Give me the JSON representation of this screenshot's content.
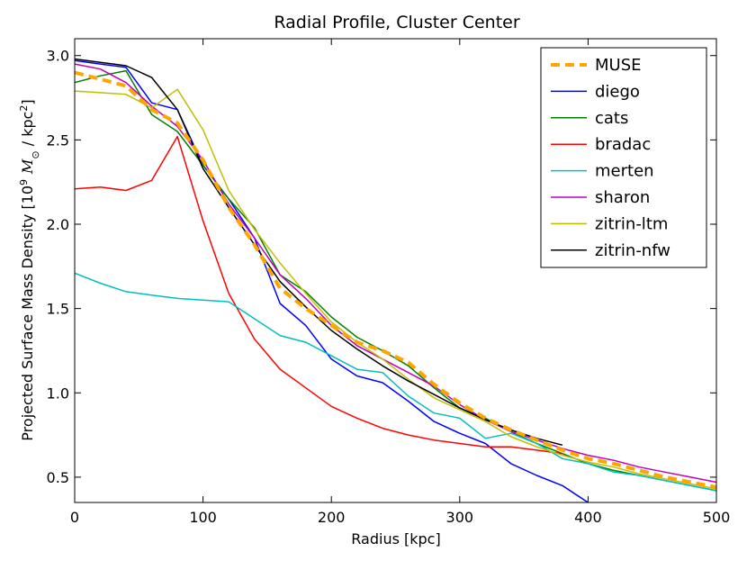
{
  "chart_data": {
    "type": "line",
    "title": "Radial Profile, Cluster Center",
    "xlabel": "Radius [kpc]",
    "ylabel": "Projected Surface Mass Density [10",
    "ylabel_sup": "9",
    "ylabel_unit": "M",
    "ylabel_sub": "⊙",
    "ylabel_tail": " / kpc",
    "ylabel_sup2": "2",
    "ylabel_end": "]",
    "xlim": [
      0,
      500
    ],
    "ylim": [
      0.35,
      3.1
    ],
    "xticks": [
      0,
      100,
      200,
      300,
      400,
      500
    ],
    "xtick_labels": [
      "0",
      "100",
      "200",
      "300",
      "400",
      "500"
    ],
    "yticks": [
      0.5,
      1.0,
      1.5,
      2.0,
      2.5,
      3.0
    ],
    "ytick_labels": [
      "0.5",
      "1.0",
      "1.5",
      "2.0",
      "2.5",
      "3.0"
    ],
    "legend_position": "top-right",
    "series": [
      {
        "name": "MUSE",
        "color": "#FFA500",
        "dashed": true,
        "x": [
          0,
          20,
          40,
          60,
          80,
          100,
          120,
          140,
          160,
          180,
          200,
          220,
          240,
          260,
          280,
          300,
          320,
          340,
          360,
          380,
          400,
          420,
          440,
          460,
          480,
          500
        ],
        "y": [
          2.9,
          2.86,
          2.82,
          2.68,
          2.6,
          2.38,
          2.1,
          1.88,
          1.62,
          1.5,
          1.4,
          1.3,
          1.25,
          1.18,
          1.05,
          0.94,
          0.85,
          0.78,
          0.72,
          0.66,
          0.61,
          0.58,
          0.54,
          0.5,
          0.47,
          0.44
        ]
      },
      {
        "name": "diego",
        "color": "#0000FF",
        "dashed": false,
        "x": [
          0,
          20,
          40,
          60,
          80,
          100,
          120,
          140,
          160,
          180,
          200,
          220,
          240,
          260,
          280,
          300,
          320,
          340,
          360,
          380,
          400
        ],
        "y": [
          2.97,
          2.95,
          2.93,
          2.72,
          2.68,
          2.35,
          2.15,
          1.92,
          1.53,
          1.4,
          1.2,
          1.1,
          1.06,
          0.95,
          0.83,
          0.76,
          0.7,
          0.58,
          0.51,
          0.45,
          0.35
        ]
      },
      {
        "name": "cats",
        "color": "#008000",
        "dashed": false,
        "x": [
          0,
          20,
          40,
          60,
          80,
          100,
          120,
          140,
          160,
          180,
          200,
          220,
          240,
          260,
          280,
          300,
          320,
          340,
          360,
          380,
          400,
          420,
          440,
          460,
          480,
          500
        ],
        "y": [
          2.84,
          2.88,
          2.91,
          2.65,
          2.55,
          2.35,
          2.15,
          1.98,
          1.7,
          1.6,
          1.45,
          1.33,
          1.25,
          1.16,
          1.03,
          0.91,
          0.85,
          0.77,
          0.7,
          0.64,
          0.58,
          0.54,
          0.51,
          0.48,
          0.45,
          0.42
        ]
      },
      {
        "name": "bradac",
        "color": "#FF0000",
        "dashed": false,
        "x": [
          0,
          20,
          40,
          60,
          80,
          100,
          120,
          140,
          160,
          180,
          200,
          220,
          240,
          260,
          280,
          300,
          320,
          340,
          360,
          380
        ],
        "y": [
          2.21,
          2.22,
          2.2,
          2.26,
          2.52,
          2.02,
          1.59,
          1.32,
          1.14,
          1.03,
          0.92,
          0.85,
          0.79,
          0.75,
          0.72,
          0.7,
          0.68,
          0.68,
          0.66,
          0.64
        ]
      },
      {
        "name": "merten",
        "color": "#00BFBF",
        "dashed": false,
        "x": [
          0,
          20,
          40,
          60,
          80,
          100,
          120,
          140,
          160,
          180,
          200,
          220,
          240,
          260,
          280,
          300,
          320,
          340,
          360,
          380,
          400,
          420,
          440,
          460,
          480,
          500
        ],
        "y": [
          1.71,
          1.65,
          1.6,
          1.58,
          1.56,
          1.55,
          1.54,
          1.44,
          1.34,
          1.3,
          1.22,
          1.14,
          1.12,
          0.98,
          0.88,
          0.85,
          0.73,
          0.76,
          0.7,
          0.61,
          0.58,
          0.53,
          0.51,
          0.48,
          0.45,
          0.42
        ]
      },
      {
        "name": "sharon",
        "color": "#BF00BF",
        "dashed": false,
        "x": [
          0,
          20,
          40,
          60,
          80,
          100,
          120,
          140,
          160,
          180,
          200,
          220,
          240,
          260,
          280,
          300,
          320,
          340,
          360,
          380,
          400,
          420,
          440,
          460,
          480,
          500
        ],
        "y": [
          2.95,
          2.92,
          2.84,
          2.7,
          2.58,
          2.38,
          2.12,
          1.92,
          1.7,
          1.56,
          1.4,
          1.28,
          1.2,
          1.12,
          1.04,
          0.93,
          0.84,
          0.77,
          0.72,
          0.67,
          0.63,
          0.6,
          0.56,
          0.53,
          0.5,
          0.47
        ]
      },
      {
        "name": "zitrin-ltm",
        "color": "#BFBF00",
        "dashed": false,
        "x": [
          0,
          20,
          40,
          60,
          80,
          100,
          120,
          140,
          160,
          180,
          200,
          220,
          240,
          260,
          280,
          300,
          320,
          340,
          360,
          380,
          400,
          420,
          440,
          460,
          480,
          500
        ],
        "y": [
          2.79,
          2.78,
          2.77,
          2.69,
          2.8,
          2.56,
          2.2,
          1.97,
          1.77,
          1.59,
          1.42,
          1.3,
          1.2,
          1.08,
          0.97,
          0.9,
          0.83,
          0.74,
          0.68,
          0.63,
          0.59,
          0.56,
          0.52,
          0.49,
          0.46,
          0.43
        ]
      },
      {
        "name": "zitrin-nfw",
        "color": "#000000",
        "dashed": false,
        "x": [
          0,
          20,
          40,
          60,
          80,
          100,
          120,
          140,
          160,
          180,
          200,
          220,
          240,
          260,
          280,
          300,
          320,
          340,
          360,
          380
        ],
        "y": [
          2.98,
          2.96,
          2.94,
          2.87,
          2.68,
          2.33,
          2.1,
          1.88,
          1.66,
          1.51,
          1.37,
          1.26,
          1.16,
          1.07,
          0.99,
          0.91,
          0.84,
          0.78,
          0.73,
          0.69
        ]
      }
    ]
  }
}
